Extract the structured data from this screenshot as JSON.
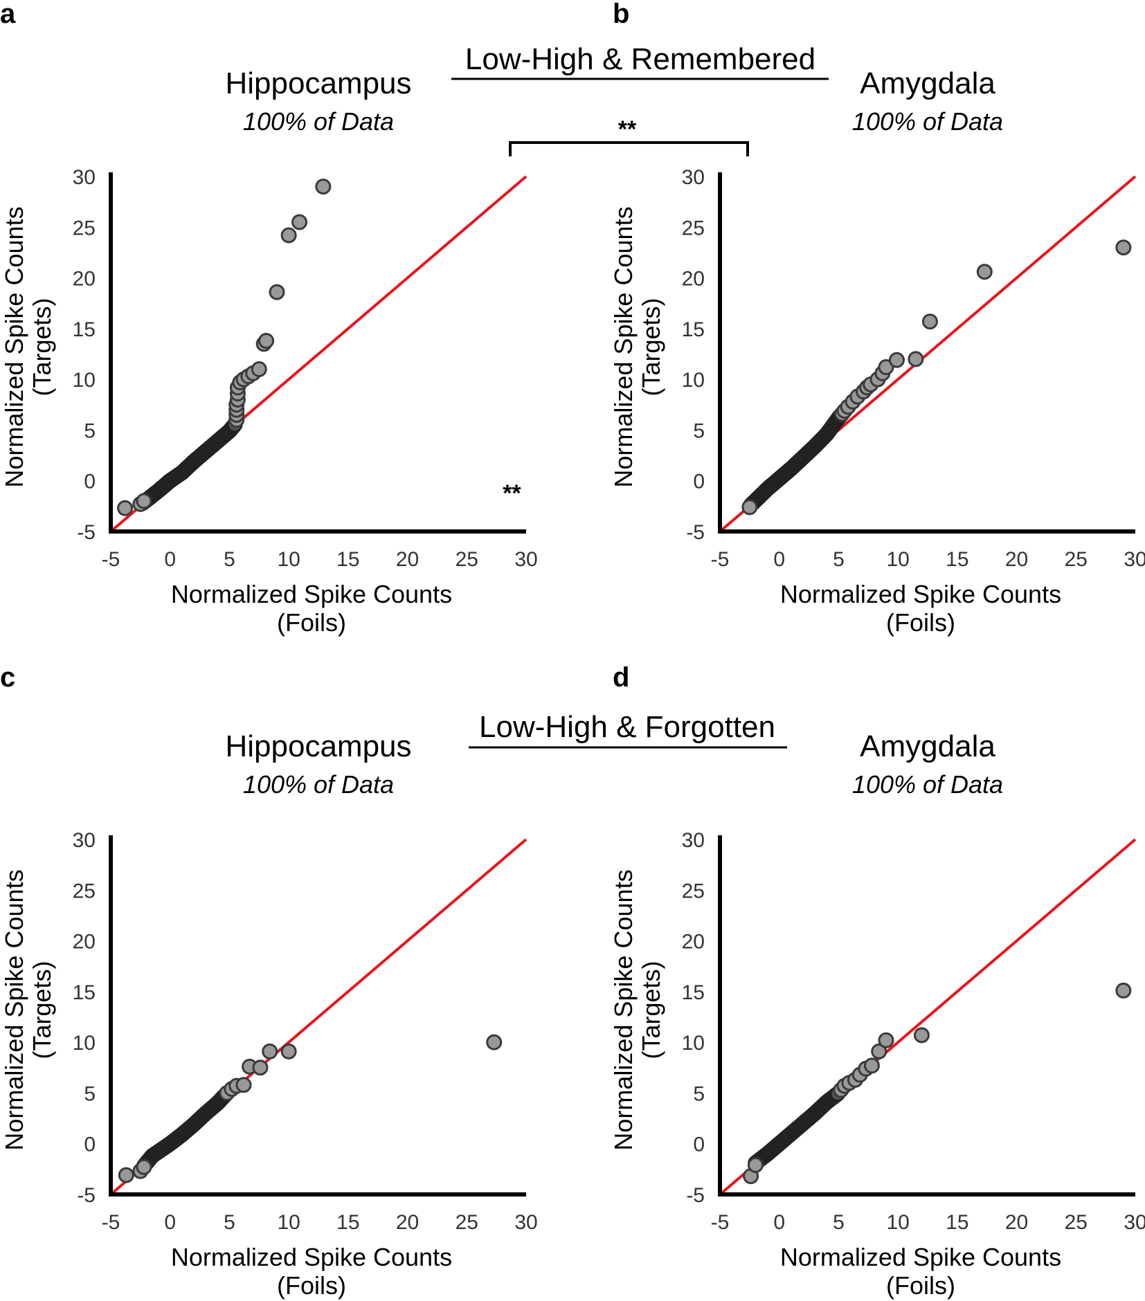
{
  "figure": {
    "groups": [
      {
        "title": "Low-High & Remembered",
        "bracket_label": "**"
      },
      {
        "title": "Low-High & Forgotten",
        "bracket_label": ""
      }
    ]
  },
  "chart_data": [
    {
      "type": "scatter",
      "panel": "a",
      "title": "Hippocampus",
      "subtitle": "100% of Data",
      "xlabel": [
        "Normalized Spike Counts",
        "(Foils)"
      ],
      "ylabel": [
        "Normalized Spike Counts",
        "(Targets)"
      ],
      "xlim": [
        -5,
        30
      ],
      "ylim": [
        -5,
        30
      ],
      "xticks": [
        "-5",
        "0",
        "5",
        "10",
        "15",
        "20",
        "25",
        "30"
      ],
      "yticks": [
        "-5",
        "0",
        "5",
        "10",
        "15",
        "20",
        "25",
        "30"
      ],
      "reference_line": {
        "from": [
          -5,
          -5
        ],
        "to": [
          30,
          30
        ],
        "color": "#e8141b"
      },
      "annotation": "**",
      "marker_color": "#999999",
      "points": [
        [
          -3.8,
          -2.7
        ],
        [
          -2.5,
          -2.3
        ],
        [
          -2.2,
          -2.0
        ],
        [
          5.6,
          6.0
        ],
        [
          5.6,
          6.5
        ],
        [
          5.6,
          7.0
        ],
        [
          5.6,
          7.5
        ],
        [
          5.7,
          8.0
        ],
        [
          5.7,
          8.6
        ],
        [
          5.7,
          9.2
        ],
        [
          5.9,
          9.7
        ],
        [
          6.2,
          10.0
        ],
        [
          6.6,
          10.3
        ],
        [
          7.0,
          10.6
        ],
        [
          7.5,
          11.0
        ],
        [
          7.9,
          13.5
        ],
        [
          8.1,
          13.8
        ],
        [
          9.0,
          18.6
        ],
        [
          10.0,
          24.2
        ],
        [
          10.9,
          25.5
        ],
        [
          12.9,
          29.0
        ]
      ],
      "dense_curve": [
        [
          -2.3,
          -2.2
        ],
        [
          -1.0,
          -1.0
        ],
        [
          0,
          0
        ],
        [
          1,
          0.8
        ],
        [
          2,
          1.9
        ],
        [
          3,
          2.9
        ],
        [
          4,
          3.9
        ],
        [
          5,
          4.9
        ],
        [
          5.5,
          5.6
        ]
      ]
    },
    {
      "type": "scatter",
      "panel": "b",
      "title": "Amygdala",
      "subtitle": "100% of Data",
      "xlabel": [
        "Normalized Spike Counts",
        "(Foils)"
      ],
      "ylabel": [
        "Normalized Spike Counts",
        "(Targets)"
      ],
      "xlim": [
        -5,
        30
      ],
      "ylim": [
        -5,
        30
      ],
      "xticks": [
        "-5",
        "0",
        "5",
        "10",
        "15",
        "20",
        "25",
        "30"
      ],
      "yticks": [
        "-5",
        "0",
        "5",
        "10",
        "15",
        "20",
        "25",
        "30"
      ],
      "reference_line": {
        "from": [
          -5,
          -5
        ],
        "to": [
          30,
          30
        ],
        "color": "#e8141b"
      },
      "annotation": "",
      "marker_color": "#999999",
      "points": [
        [
          -2.5,
          -2.6
        ],
        [
          5.3,
          6.6
        ],
        [
          5.5,
          6.9
        ],
        [
          5.8,
          7.3
        ],
        [
          6.2,
          7.8
        ],
        [
          6.6,
          8.3
        ],
        [
          7.1,
          8.8
        ],
        [
          7.4,
          9.2
        ],
        [
          7.7,
          9.5
        ],
        [
          8.3,
          10.0
        ],
        [
          8.7,
          10.6
        ],
        [
          9.0,
          11.2
        ],
        [
          9.9,
          11.9
        ],
        [
          11.5,
          12.0
        ],
        [
          12.7,
          15.7
        ],
        [
          17.3,
          20.6
        ],
        [
          29.0,
          23.0
        ]
      ],
      "dense_curve": [
        [
          -2.4,
          -2.4
        ],
        [
          -1.0,
          -0.8
        ],
        [
          0,
          0.2
        ],
        [
          1,
          1.2
        ],
        [
          2,
          2.3
        ],
        [
          3,
          3.4
        ],
        [
          4,
          4.6
        ],
        [
          5,
          6.2
        ],
        [
          5.3,
          6.6
        ]
      ]
    },
    {
      "type": "scatter",
      "panel": "c",
      "title": "Hippocampus",
      "subtitle": "100% of Data",
      "xlabel": [
        "Normalized Spike Counts",
        "(Foils)"
      ],
      "ylabel": [
        "Normalized Spike Counts",
        "(Targets)"
      ],
      "xlim": [
        -5,
        30
      ],
      "ylim": [
        -5,
        30
      ],
      "xticks": [
        "-5",
        "0",
        "5",
        "10",
        "15",
        "20",
        "25",
        "30"
      ],
      "yticks": [
        "-5",
        "0",
        "5",
        "10",
        "15",
        "20",
        "25",
        "30"
      ],
      "reference_line": {
        "from": [
          -5,
          -5
        ],
        "to": [
          30,
          30
        ],
        "color": "#e8141b"
      },
      "annotation": "",
      "marker_color": "#999999",
      "points": [
        [
          -3.7,
          -3.1
        ],
        [
          -2.5,
          -2.7
        ],
        [
          -2.2,
          -2.3
        ],
        [
          4.8,
          5.0
        ],
        [
          5.2,
          5.4
        ],
        [
          5.6,
          5.7
        ],
        [
          6.2,
          5.8
        ],
        [
          6.7,
          7.6
        ],
        [
          7.6,
          7.5
        ],
        [
          8.4,
          9.1
        ],
        [
          10.0,
          9.1
        ],
        [
          27.3,
          10.0
        ]
      ],
      "dense_curve": [
        [
          -2.2,
          -2.2
        ],
        [
          -1.5,
          -1.2
        ],
        [
          0,
          0
        ],
        [
          1,
          0.9
        ],
        [
          2,
          1.9
        ],
        [
          3,
          3.0
        ],
        [
          4,
          4.0
        ],
        [
          4.8,
          5.0
        ]
      ]
    },
    {
      "type": "scatter",
      "panel": "d",
      "title": "Amygdala",
      "subtitle": "100% of Data",
      "xlabel": [
        "Normalized Spike Counts",
        "(Foils)"
      ],
      "ylabel": [
        "Normalized Spike Counts",
        "(Targets)"
      ],
      "xlim": [
        -5,
        30
      ],
      "ylim": [
        -5,
        30
      ],
      "xticks": [
        "-5",
        "0",
        "5",
        "10",
        "15",
        "20",
        "25",
        "30"
      ],
      "yticks": [
        "-5",
        "0",
        "5",
        "10",
        "15",
        "20",
        "25",
        "30"
      ],
      "reference_line": {
        "from": [
          -5,
          -5
        ],
        "to": [
          30,
          30
        ],
        "color": "#e8141b"
      },
      "annotation": "",
      "marker_color": "#999999",
      "points": [
        [
          -2.4,
          -3.2
        ],
        [
          -2.0,
          -2.1
        ],
        [
          5.2,
          5.3
        ],
        [
          5.5,
          5.7
        ],
        [
          5.9,
          6.0
        ],
        [
          6.4,
          6.3
        ],
        [
          6.8,
          6.8
        ],
        [
          7.3,
          7.4
        ],
        [
          7.8,
          7.7
        ],
        [
          8.4,
          9.1
        ],
        [
          9.0,
          10.2
        ],
        [
          12.0,
          10.7
        ],
        [
          29.0,
          15.1
        ]
      ],
      "dense_curve": [
        [
          -2.0,
          -1.9
        ],
        [
          -1.0,
          -1.0
        ],
        [
          0,
          0
        ],
        [
          1,
          1.0
        ],
        [
          2,
          2.0
        ],
        [
          3,
          3.0
        ],
        [
          4,
          4.1
        ],
        [
          5,
          5.0
        ]
      ]
    }
  ]
}
